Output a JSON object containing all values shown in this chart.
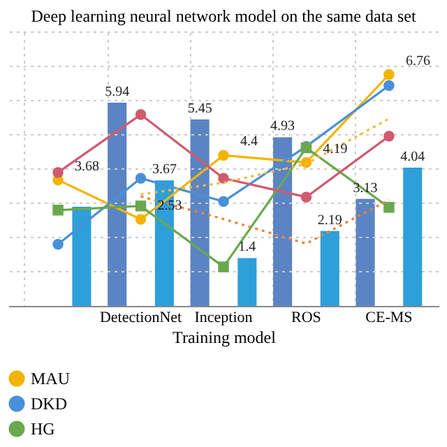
{
  "chart_data": {
    "type": "bar",
    "title": "Deep learning neural network model on the same data set",
    "xlabel": "Training model",
    "categories": [
      null,
      "DetectionNet",
      "Inception",
      "ROS",
      "CE-MS"
    ],
    "ylim": [
      0,
      8
    ],
    "yticks": [
      {
        "value": 1,
        "label": null
      },
      {
        "value": 2,
        "label": null
      },
      {
        "value": 3,
        "label": null
      },
      {
        "value": 4,
        "label": null
      },
      {
        "value": 5,
        "label": null
      },
      {
        "value": 6,
        "label": null
      },
      {
        "value": 7,
        "label": null
      },
      {
        "value": 8,
        "label": null
      }
    ],
    "tick_labels": "x",
    "grid": true,
    "legend": "bottom",
    "series": [
      {
        "color": "#5b84c4",
        "values": [
          null,
          5.94,
          5.45,
          4.93,
          3.13
        ],
        "value_labels": [
          null,
          "5.94",
          "5.45",
          "4.93",
          "3.13"
        ]
      },
      {
        "color": "#2e9fd8",
        "values": [
          2.9,
          3.67,
          1.4,
          2.19,
          4.04
        ],
        "value_labels": [
          null,
          "3.67",
          "1.4",
          "2.19",
          "4.04"
        ]
      },
      {
        "type": "line",
        "name": "MAU",
        "color": "#f2b400",
        "marker": "circle",
        "line_style": "solid",
        "values": [
          3.68,
          2.53,
          4.4,
          4.19,
          6.76
        ],
        "value_labels": [
          "3.68",
          "2.53",
          "4.4",
          "4.19",
          "6.76"
        ]
      },
      {
        "type": "line",
        "name": "DKD",
        "color": "#4a90d9",
        "marker": "circle",
        "line_style": "solid",
        "values": [
          1.8,
          3.73,
          3.05,
          4.66,
          6.44
        ]
      },
      {
        "type": "line",
        "name": "HG",
        "color": "#6aa84f",
        "marker": "square",
        "line_style": "solid",
        "values": [
          2.8,
          2.92,
          1.14,
          4.62,
          2.88
        ]
      },
      {
        "type": "line",
        "color": "#d05a6e",
        "marker": "circle",
        "line_style": "solid",
        "values": [
          3.9,
          5.59,
          3.73,
          3.18,
          4.96
        ]
      },
      {
        "type": "line",
        "color": "#f5b83d",
        "marker": "none",
        "line_style": "dotted",
        "values": [
          null,
          3.26,
          3.6,
          4.15,
          5.47
        ]
      },
      {
        "type": "line",
        "color": "#e8823a",
        "marker": "none",
        "line_style": "dotted",
        "values": [
          null,
          3.2,
          2.54,
          1.82,
          3.1
        ]
      }
    ]
  }
}
